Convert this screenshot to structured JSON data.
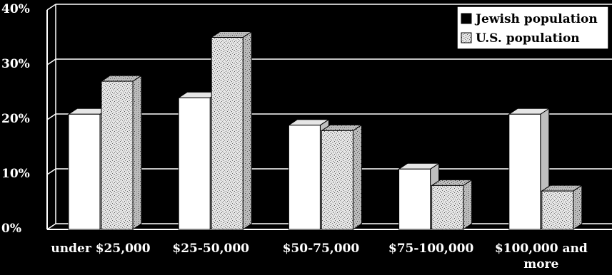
{
  "chart_data": {
    "type": "bar",
    "title": "",
    "xlabel": "",
    "ylabel": "",
    "ylim": [
      0,
      40
    ],
    "y_ticks": [
      "0%",
      "10%",
      "20%",
      "30%",
      "40%"
    ],
    "grid": true,
    "legend_position": "top-right",
    "categories": [
      [
        "under $25,000"
      ],
      [
        "$25-50,000"
      ],
      [
        "$50-75,000"
      ],
      [
        "$75-100,000"
      ],
      [
        "$100,000 and",
        "more"
      ]
    ],
    "series": [
      {
        "name": "Jewish population",
        "values": [
          21,
          24,
          19,
          11,
          21
        ],
        "color": "#ffffff",
        "pattern": "solid"
      },
      {
        "name": "U.S. population",
        "values": [
          27,
          35,
          18,
          8,
          7
        ],
        "color": "#d9d9d9",
        "pattern": "speckled"
      }
    ],
    "background_color": "#000000",
    "grid_color": "#ffffff"
  }
}
